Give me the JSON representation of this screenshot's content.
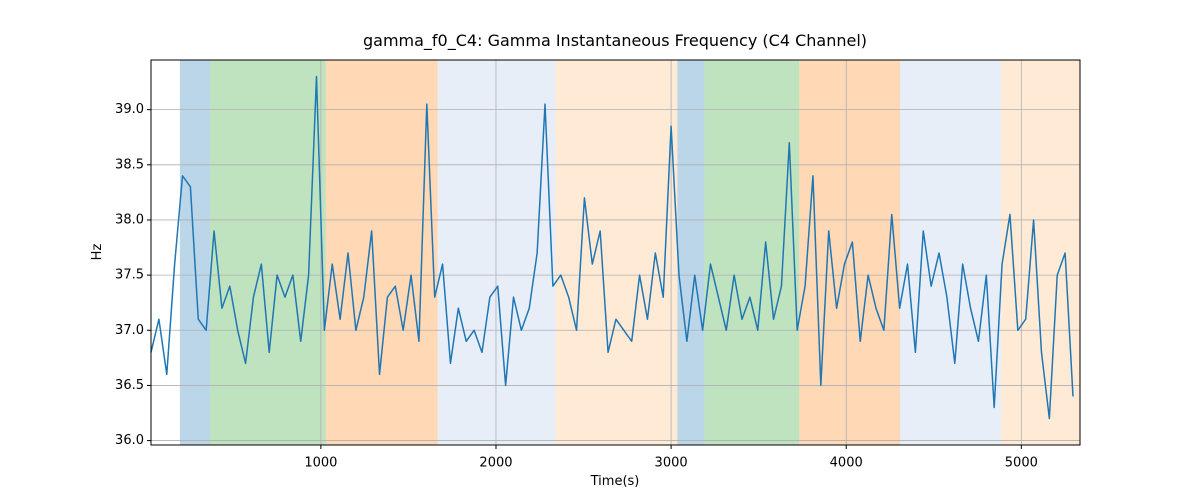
{
  "chart_data": {
    "type": "line",
    "title": "gamma_f0_C4: Gamma Instantaneous Frequency (C4 Channel)",
    "xlabel": "Time(s)",
    "ylabel": "Hz",
    "xlim": [
      30,
      5335
    ],
    "ylim": [
      35.96,
      39.45
    ],
    "xticks": [
      1000,
      2000,
      3000,
      4000,
      5000
    ],
    "yticks": [
      {
        "value": 36,
        "label": "36.0"
      },
      36.5,
      {
        "value": 37,
        "label": "37.0"
      },
      37.5,
      {
        "value": 38,
        "label": "38.0"
      },
      38.5,
      {
        "value": 39,
        "label": "39.0"
      }
    ],
    "grid": true,
    "spans": [
      {
        "start": 195,
        "end": 367,
        "color": "#1f77b4"
      },
      {
        "start": 367,
        "end": 1028,
        "color": "#2ca02c"
      },
      {
        "start": 1028,
        "end": 1667,
        "color": "#ff7f0e"
      },
      {
        "start": 1667,
        "end": 2340,
        "color": "#aec7e8"
      },
      {
        "start": 2340,
        "end": 3036,
        "color": "#ffbb78"
      },
      {
        "start": 3036,
        "end": 3190,
        "color": "#1f77b4"
      },
      {
        "start": 3190,
        "end": 3732,
        "color": "#2ca02c"
      },
      {
        "start": 3732,
        "end": 4308,
        "color": "#ff7f0e"
      },
      {
        "start": 4308,
        "end": 4885,
        "color": "#aec7e8"
      },
      {
        "start": 4885,
        "end": 5335,
        "color": "#ffbb78"
      }
    ],
    "x": [
      30,
      75,
      120,
      165,
      210,
      255,
      300,
      345,
      390,
      435,
      480,
      525,
      570,
      615,
      660,
      705,
      750,
      795,
      840,
      885,
      930,
      975,
      1020,
      1065,
      1110,
      1155,
      1200,
      1245,
      1290,
      1335,
      1380,
      1425,
      1470,
      1515,
      1560,
      1605,
      1650,
      1695,
      1740,
      1785,
      1830,
      1875,
      1920,
      1965,
      2010,
      2055,
      2100,
      2145,
      2190,
      2235,
      2280,
      2325,
      2370,
      2415,
      2460,
      2505,
      2550,
      2595,
      2640,
      2685,
      2730,
      2775,
      2820,
      2865,
      2910,
      2955,
      3000,
      3045,
      3090,
      3135,
      3180,
      3225,
      3270,
      3315,
      3360,
      3405,
      3450,
      3495,
      3540,
      3585,
      3630,
      3675,
      3720,
      3765,
      3810,
      3855,
      3900,
      3945,
      3990,
      4035,
      4080,
      4125,
      4170,
      4215,
      4260,
      4305,
      4350,
      4395,
      4440,
      4485,
      4530,
      4575,
      4620,
      4665,
      4710,
      4755,
      4800,
      4845,
      4890,
      4935,
      4980,
      5025,
      5070,
      5115,
      5160,
      5205,
      5250,
      5295
    ],
    "series": [
      {
        "name": "gamma_f0_C4",
        "color": "#1f77b4",
        "values": [
          36.8,
          37.1,
          36.6,
          37.6,
          38.4,
          38.3,
          37.1,
          37.0,
          37.9,
          37.2,
          37.4,
          37.0,
          36.7,
          37.3,
          37.6,
          36.8,
          37.5,
          37.3,
          37.5,
          36.9,
          37.5,
          39.3,
          37.0,
          37.6,
          37.1,
          37.7,
          37.0,
          37.3,
          37.9,
          36.6,
          37.3,
          37.4,
          37.0,
          37.5,
          36.9,
          39.05,
          37.3,
          37.6,
          36.7,
          37.2,
          36.9,
          37.0,
          36.8,
          37.3,
          37.4,
          36.5,
          37.3,
          37.0,
          37.2,
          37.7,
          39.05,
          37.4,
          37.5,
          37.3,
          37.0,
          38.2,
          37.6,
          37.9,
          36.8,
          37.1,
          37.0,
          36.9,
          37.5,
          37.1,
          37.7,
          37.3,
          38.85,
          37.5,
          36.9,
          37.5,
          37.0,
          37.6,
          37.3,
          37.0,
          37.5,
          37.1,
          37.3,
          37.0,
          37.8,
          37.1,
          37.4,
          38.7,
          37.0,
          37.4,
          38.4,
          36.5,
          37.9,
          37.2,
          37.6,
          37.8,
          36.9,
          37.5,
          37.2,
          37.0,
          38.05,
          37.2,
          37.6,
          36.8,
          37.9,
          37.4,
          37.7,
          37.3,
          36.7,
          37.6,
          37.2,
          36.9,
          37.5,
          36.3,
          37.6,
          38.05,
          37.0,
          37.1,
          38.0,
          36.8,
          36.2,
          37.5,
          37.7,
          36.4
        ]
      }
    ]
  }
}
